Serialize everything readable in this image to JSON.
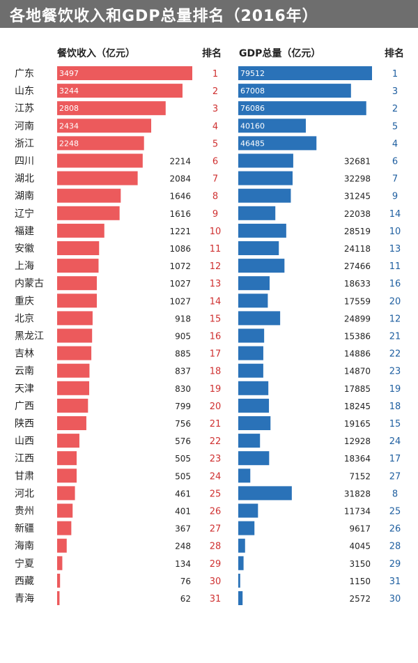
{
  "title": "各地餐饮收入和GDP总量排名（2016年）",
  "headers": {
    "catering": "餐饮收入（亿元）",
    "rank1": "排名",
    "gdp": "GDP总量（亿元）",
    "rank2": "排名"
  },
  "colors": {
    "catering_bar": "#ec5a5c",
    "gdp_bar": "#2a72b8",
    "rank1_text": "#cf3030",
    "rank2_text": "#1f5fa0",
    "title_bg": "#6e6e6e"
  },
  "chart_data": {
    "type": "bar",
    "categories": [
      "广东",
      "山东",
      "江苏",
      "河南",
      "浙江",
      "四川",
      "湖北",
      "湖南",
      "辽宁",
      "福建",
      "安徽",
      "上海",
      "内蒙古",
      "重庆",
      "北京",
      "黑龙江",
      "吉林",
      "云南",
      "天津",
      "广西",
      "陕西",
      "山西",
      "江西",
      "甘肃",
      "河北",
      "贵州",
      "新疆",
      "海南",
      "宁夏",
      "西藏",
      "青海"
    ],
    "series": [
      {
        "name": "餐饮收入（亿元）",
        "values": [
          3497,
          3244,
          2808,
          2434,
          2248,
          2214,
          2084,
          1646,
          1616,
          1221,
          1086,
          1072,
          1027,
          1027,
          918,
          905,
          885,
          837,
          830,
          799,
          756,
          576,
          505,
          505,
          461,
          401,
          367,
          248,
          134,
          76,
          62
        ],
        "ranks": [
          1,
          2,
          3,
          4,
          5,
          6,
          7,
          8,
          9,
          10,
          11,
          12,
          13,
          14,
          15,
          16,
          17,
          18,
          19,
          20,
          21,
          22,
          23,
          24,
          25,
          26,
          27,
          28,
          29,
          30,
          31
        ]
      },
      {
        "name": "GDP总量（亿元）",
        "values": [
          79512,
          67008,
          76086,
          40160,
          46485,
          32681,
          32298,
          31245,
          22038,
          28519,
          24118,
          27466,
          18633,
          17559,
          24899,
          15386,
          14886,
          14870,
          17885,
          18245,
          19165,
          12928,
          18364,
          7152,
          31828,
          11734,
          9617,
          4045,
          3150,
          1150,
          2572
        ],
        "ranks": [
          1,
          3,
          2,
          5,
          4,
          6,
          7,
          9,
          14,
          10,
          13,
          11,
          16,
          20,
          12,
          21,
          22,
          23,
          19,
          18,
          15,
          24,
          17,
          27,
          8,
          25,
          26,
          28,
          29,
          31,
          30
        ]
      }
    ]
  }
}
